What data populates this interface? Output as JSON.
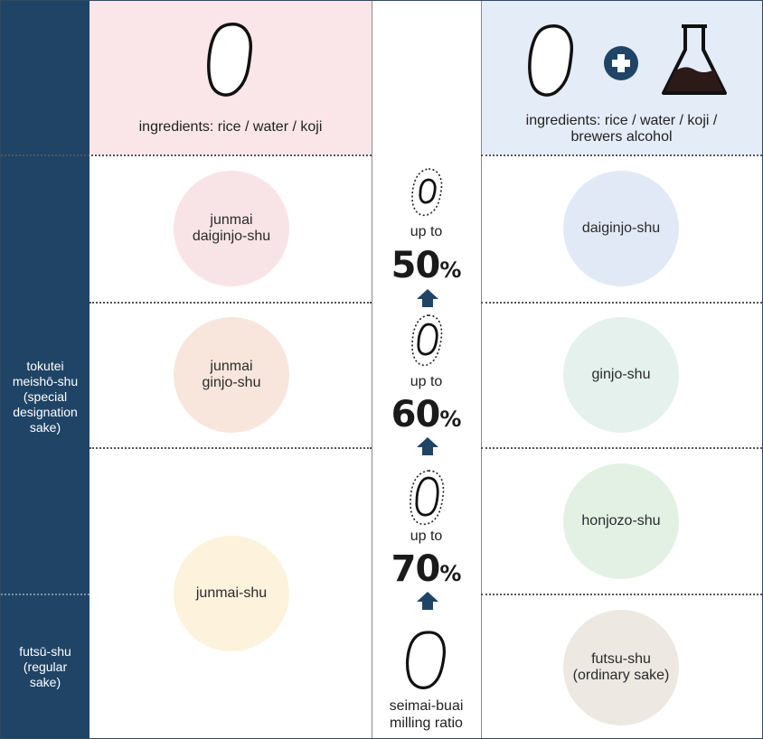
{
  "left_bar": {
    "tokutei_label": "tokutei\nmeishō-shu\n(special\ndesignation\nsake)",
    "futsu_label": "futsū-shu\n(regular\nsake)"
  },
  "header_left": {
    "ingredients": "ingredients: rice / water / koji"
  },
  "header_right": {
    "ingredients": "ingredients:  rice / water / koji /\nbrewers alcohol"
  },
  "junmai_column": [
    {
      "name": "junmai\ndaiginjo-shu",
      "color": "#f8e4e6"
    },
    {
      "name": "junmai\nginjo-shu",
      "color": "#f8e6dc"
    },
    {
      "name": "junmai-shu",
      "color": "#fdf2dc"
    }
  ],
  "alcohol_column": [
    {
      "name": "daiginjo-shu",
      "color": "#e2e9f6"
    },
    {
      "name": "ginjo-shu",
      "color": "#e4f1ec"
    },
    {
      "name": "honjozo-shu",
      "color": "#e2f1e4"
    },
    {
      "name": "futsu-shu\n(ordinary sake)",
      "color": "#ede8e2"
    }
  ],
  "milling": [
    {
      "up_to": "up to",
      "value": "50",
      "unit": "%"
    },
    {
      "up_to": "up to",
      "value": "60",
      "unit": "%"
    },
    {
      "up_to": "up to",
      "value": "70",
      "unit": "%"
    }
  ],
  "milling_label": "seimai-buai\nmilling ratio",
  "colors": {
    "sidebar": "#1f4466",
    "arrow": "#1f4466",
    "header_left_bg": "#fae6e8",
    "header_right_bg": "#e4ecf8"
  },
  "icons": [
    "rice-grain-icon",
    "plus-icon",
    "flask-icon",
    "polished-rice-icon",
    "up-arrow-icon"
  ]
}
